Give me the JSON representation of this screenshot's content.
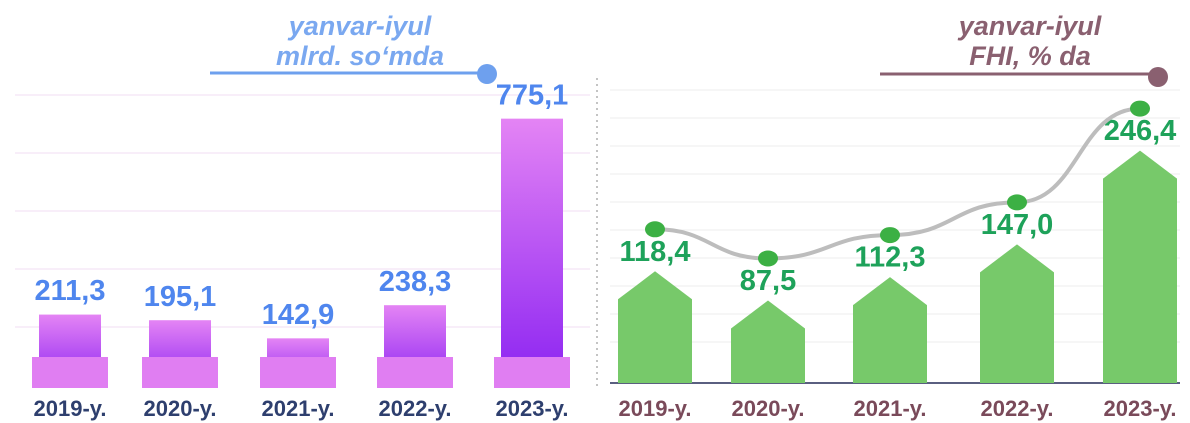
{
  "chart_data": [
    {
      "type": "bar",
      "title": "yanvar-iyul",
      "subtitle": "mlrd. so‘mda",
      "categories": [
        "2019-y.",
        "2020-y.",
        "2021-y.",
        "2022-y.",
        "2023-y."
      ],
      "values": [
        211.3,
        195.1,
        142.9,
        238.3,
        775.1
      ],
      "value_labels": [
        "211,3",
        "195,1",
        "142,9",
        "238,3",
        "775,1"
      ],
      "color": "#c05cf2",
      "ylim": [
        0,
        800
      ]
    },
    {
      "type": "bar",
      "title": "yanvar-iyul",
      "subtitle": "FHI, % da",
      "categories": [
        "2019-y.",
        "2020-y.",
        "2021-y.",
        "2022-y.",
        "2023-y."
      ],
      "values": [
        118.4,
        87.5,
        112.3,
        147.0,
        246.4
      ],
      "value_labels": [
        "118,4",
        "87,5",
        "112,3",
        "147,0",
        "246,4"
      ],
      "color": "#77c96a",
      "line": true,
      "line_color": "#bdbdbd",
      "point_color": "#3cb044",
      "ylim": [
        0,
        300
      ]
    }
  ]
}
